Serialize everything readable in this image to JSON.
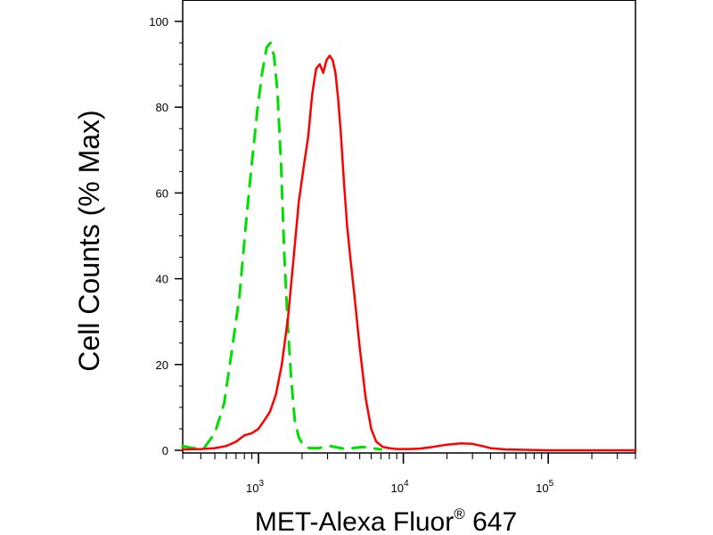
{
  "chart_data": {
    "type": "line",
    "xlabel": "MET-Alexa Fluor",
    "xlabel_mark": "®",
    "xlabel_suffix": " 647",
    "ylabel": "Cell Counts (% Max)",
    "xscale": "log",
    "xlim": [
      300,
      400000
    ],
    "ylim": [
      0,
      100
    ],
    "y_ticks": [
      {
        "value": 0,
        "label": "0"
      },
      {
        "value": 20,
        "label": "20"
      },
      {
        "value": 40,
        "label": "40"
      },
      {
        "value": 60,
        "label": "60"
      },
      {
        "value": 80,
        "label": "80"
      },
      {
        "value": 100,
        "label": "100"
      }
    ],
    "x_ticks": [
      {
        "value": 1000,
        "base": "10",
        "exp": "3"
      },
      {
        "value": 10000,
        "base": "10",
        "exp": "4"
      },
      {
        "value": 100000,
        "base": "10",
        "exp": "5"
      }
    ],
    "grid": false,
    "legend": "none",
    "series": [
      {
        "color": "#00e000",
        "style": "dashed",
        "x": [
          300,
          350,
          420,
          500,
          580,
          660,
          740,
          820,
          900,
          980,
          1060,
          1140,
          1210,
          1280,
          1350,
          1430,
          1510,
          1590,
          1680,
          1780,
          1900,
          2050,
          2250,
          2600,
          3100,
          4000,
          5200,
          7000
        ],
        "y": [
          1,
          0.5,
          0.5,
          4,
          11,
          24,
          36,
          53,
          67,
          79,
          88,
          94,
          95,
          92,
          84,
          67,
          45,
          30,
          17,
          7,
          3,
          1,
          0.5,
          0.5,
          1,
          0.3,
          0.8,
          0.2
        ]
      },
      {
        "color": "#ff0000",
        "style": "solid",
        "x": [
          300,
          400,
          500,
          600,
          700,
          800,
          900,
          1000,
          1100,
          1200,
          1320,
          1450,
          1600,
          1750,
          1900,
          2050,
          2200,
          2350,
          2500,
          2650,
          2800,
          2950,
          3100,
          3250,
          3400,
          3550,
          3700,
          3900,
          4100,
          4300,
          4600,
          5000,
          5500,
          6000,
          6500,
          7200,
          8000,
          9000,
          10000,
          11000,
          13000,
          16000,
          20000,
          25000,
          30000,
          35000,
          40000,
          50000,
          70000,
          100000,
          200000,
          400000
        ],
        "y": [
          0.2,
          0.3,
          0.5,
          1,
          2,
          3.5,
          4,
          5,
          7,
          9,
          13,
          20,
          31,
          45,
          58,
          66,
          73,
          83,
          89,
          90,
          88,
          91,
          92,
          91,
          88,
          82,
          74,
          62,
          52,
          45,
          36,
          24,
          12,
          5,
          2,
          0.8,
          0.5,
          0.3,
          0.3,
          0.3,
          0.4,
          0.8,
          1.3,
          1.6,
          1.5,
          1.0,
          0.5,
          0.2,
          0.1,
          0,
          0,
          0
        ]
      }
    ]
  }
}
